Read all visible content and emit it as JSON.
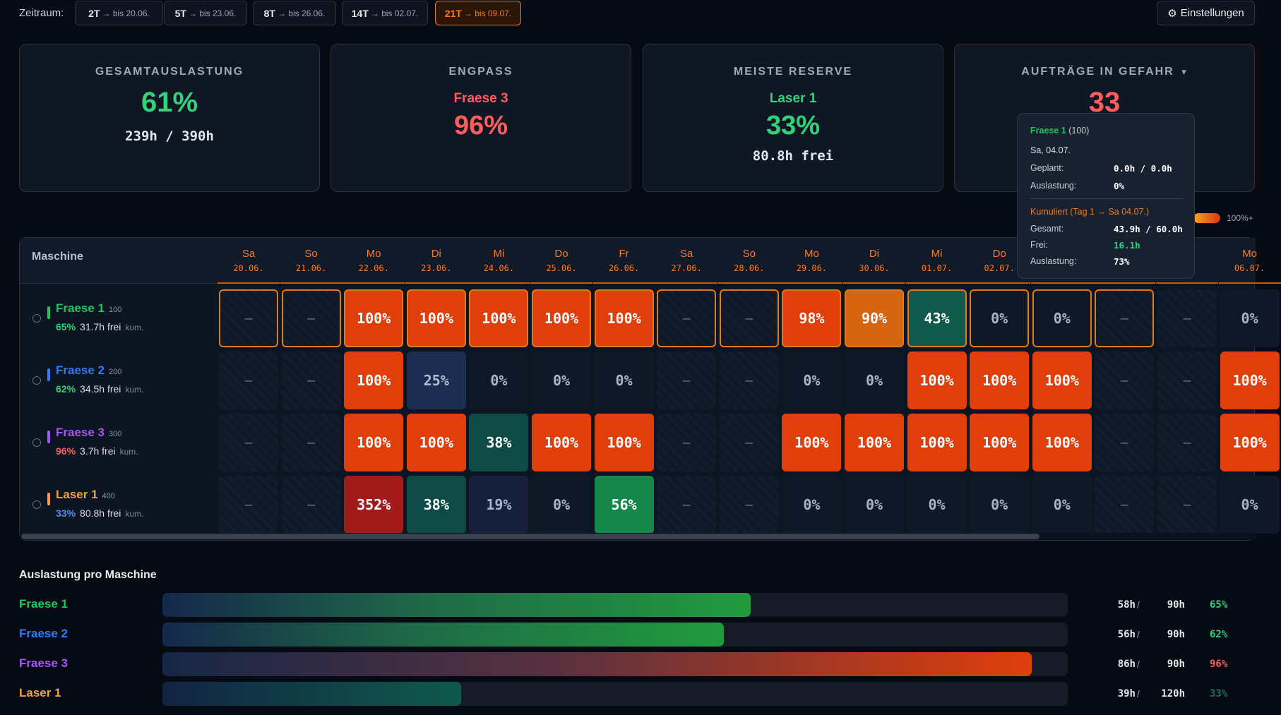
{
  "topbar": {
    "label": "Zeitraum:",
    "ranges": [
      {
        "main": "2T",
        "sub": "→ bis 20.06."
      },
      {
        "main": "5T",
        "sub": "→ bis 23.06."
      },
      {
        "main": "8T",
        "sub": "→ bis 26.06."
      },
      {
        "main": "14T",
        "sub": "→ bis 02.07."
      },
      {
        "main": "21T",
        "sub": "→ bis 09.07.",
        "active": true
      }
    ],
    "settings_label": "Einstellungen",
    "settings_icon": "gear-icon"
  },
  "kpis": {
    "total": {
      "title": "GESAMTAUSLASTUNG",
      "value": "61%",
      "sub": "239h / 390h"
    },
    "bottleneck": {
      "title": "ENGPASS",
      "machine": "Fraese 3",
      "value": "96%"
    },
    "reserve": {
      "title": "MEISTE RESERVE",
      "machine": "Laser 1",
      "value": "33%",
      "sub": "80.8h frei"
    },
    "risk": {
      "title": "AUFTRÄGE IN GEFAHR",
      "caret": "▾",
      "value": "33"
    }
  },
  "grid": {
    "header_label": "Maschine",
    "days": [
      {
        "dn": "Sa",
        "dd": "20.06."
      },
      {
        "dn": "So",
        "dd": "21.06."
      },
      {
        "dn": "Mo",
        "dd": "22.06."
      },
      {
        "dn": "Di",
        "dd": "23.06."
      },
      {
        "dn": "Mi",
        "dd": "24.06."
      },
      {
        "dn": "Do",
        "dd": "25.06."
      },
      {
        "dn": "Fr",
        "dd": "26.06."
      },
      {
        "dn": "Sa",
        "dd": "27.06."
      },
      {
        "dn": "So",
        "dd": "28.06."
      },
      {
        "dn": "Mo",
        "dd": "29.06."
      },
      {
        "dn": "Di",
        "dd": "30.06."
      },
      {
        "dn": "Mi",
        "dd": "01.07."
      },
      {
        "dn": "Do",
        "dd": "02.07."
      },
      {
        "dn": "",
        "dd": ""
      },
      {
        "dn": "",
        "dd": ""
      },
      {
        "dn": "",
        "dd": ""
      },
      {
        "dn": "Mo",
        "dd": "06.07."
      }
    ],
    "machines": [
      {
        "name": "Fraese 1",
        "id": "100",
        "pct": "65%",
        "free": "31.7h frei",
        "kum": "kum.",
        "color": "#22c55e",
        "pct_color": "#34d07a",
        "cells": [
          "–",
          "–",
          "100%",
          "100%",
          "100%",
          "100%",
          "100%",
          "–",
          "–",
          "98%",
          "90%",
          "43%",
          "0%",
          "0%",
          "–",
          "–",
          "0%"
        ]
      },
      {
        "name": "Fraese 2",
        "id": "200",
        "pct": "62%",
        "free": "34.5h frei",
        "kum": "kum.",
        "color": "#2f7cf6",
        "pct_color": "#34d07a",
        "cells": [
          "–",
          "–",
          "100%",
          "25%",
          "0%",
          "0%",
          "0%",
          "–",
          "–",
          "0%",
          "0%",
          "100%",
          "100%",
          "100%",
          "–",
          "–",
          "100%"
        ]
      },
      {
        "name": "Fraese 3",
        "id": "300",
        "pct": "96%",
        "free": "3.7h frei",
        "kum": "kum.",
        "color": "#a855f7",
        "pct_color": "#ff5c5c",
        "cells": [
          "–",
          "–",
          "100%",
          "100%",
          "38%",
          "100%",
          "100%",
          "–",
          "–",
          "100%",
          "100%",
          "100%",
          "100%",
          "100%",
          "–",
          "–",
          "100%"
        ]
      },
      {
        "name": "Laser 1",
        "id": "400",
        "pct": "33%",
        "free": "80.8h frei",
        "kum": "kum.",
        "color": "#f59e3b",
        "pct_color": "#4e8cf5",
        "cells": [
          "–",
          "–",
          "352%",
          "38%",
          "19%",
          "0%",
          "56%",
          "–",
          "–",
          "0%",
          "0%",
          "0%",
          "0%",
          "0%",
          "–",
          "–",
          "0%"
        ]
      }
    ]
  },
  "legend": {
    "label": "100%+"
  },
  "tooltip": {
    "machine": "Fraese 1",
    "machine_id": "(100)",
    "date": "Sa, 04.07.",
    "planned_label": "Geplant:",
    "planned_value": "0.0h / 0.0h",
    "util_label": "Auslastung:",
    "util_value": "0%",
    "cum_title": "Kumuliert (Tag 1 → Sa 04.07.)",
    "cum_total_label": "Gesamt:",
    "cum_total_value": "43.9h / 60.0h",
    "cum_free_label": "Frei:",
    "cum_free_value": "16.1h",
    "cum_util_label": "Auslastung:",
    "cum_util_value": "73%"
  },
  "capacity": {
    "title": "Auslastung pro Maschine",
    "rows": [
      {
        "name": "Fraese 1",
        "used": "58h",
        "slash": "/",
        "total": "90h",
        "pct": "65%",
        "fill": 0.65,
        "color": "#22c55e",
        "pct_color": "#34d07a"
      },
      {
        "name": "Fraese 2",
        "used": "56h",
        "slash": "/",
        "total": "90h",
        "pct": "62%",
        "fill": 0.62,
        "color": "#2f7cf6",
        "pct_color": "#34d07a"
      },
      {
        "name": "Fraese 3",
        "used": "86h",
        "slash": "/",
        "total": "90h",
        "pct": "96%",
        "fill": 0.96,
        "color": "#a855f7",
        "pct_color": "#ff5c5c"
      },
      {
        "name": "Laser 1",
        "used": "39h",
        "slash": "/",
        "total": "120h",
        "pct": "33%",
        "fill": 0.33,
        "color": "#f59e3b",
        "pct_color": "#1f6f5c"
      }
    ]
  }
}
